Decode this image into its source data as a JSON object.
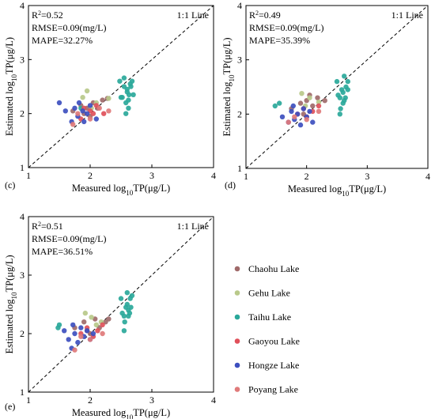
{
  "chart_data": [
    {
      "type": "scatter",
      "panel_label": "(c)",
      "xlabel": "Measured log10TP(μg/L)",
      "ylabel": "Estimated log10TP(μg/L)",
      "xlim": [
        1,
        4
      ],
      "ylim": [
        1,
        4
      ],
      "xticks": [
        "1",
        "2",
        "3",
        "4"
      ],
      "yticks": [
        "1",
        "2",
        "3",
        "4"
      ],
      "reference_line": "1:1 Line",
      "stats": [
        "R2=0.52",
        "RMSE=0.09(mg/L)",
        "MAPE=32.27%"
      ],
      "series": [
        {
          "name": "Chaohu Lake",
          "x": [
            1.72,
            1.85,
            1.95,
            2.05,
            2.12,
            2.2,
            2.28,
            1.9,
            2.0
          ],
          "y": [
            2.05,
            2.15,
            2.1,
            2.2,
            2.1,
            2.25,
            2.28,
            2.0,
            1.95
          ]
        },
        {
          "name": "Gehu Lake",
          "x": [
            1.88,
            1.95,
            2.1,
            2.3,
            2.02
          ],
          "y": [
            2.3,
            2.42,
            2.2,
            2.28,
            2.1
          ]
        },
        {
          "name": "Taihu Lake",
          "x": [
            2.48,
            2.52,
            2.55,
            2.58,
            2.6,
            2.62,
            2.65,
            2.68,
            2.5,
            2.55,
            2.6,
            2.63,
            2.66,
            2.7,
            2.58,
            2.62,
            1.85
          ],
          "y": [
            2.6,
            2.3,
            2.5,
            2.2,
            2.4,
            2.1,
            2.55,
            2.6,
            2.3,
            2.66,
            2.45,
            2.35,
            2.5,
            2.35,
            2.0,
            2.25,
            2.1
          ]
        },
        {
          "name": "Gaoyou Lake",
          "x": [
            1.85,
            1.9,
            2.0,
            2.05,
            2.1,
            2.22
          ],
          "y": [
            1.9,
            2.1,
            2.05,
            2.0,
            2.15,
            2.0
          ]
        },
        {
          "name": "Hongze Lake",
          "x": [
            1.5,
            1.6,
            1.7,
            1.75,
            1.8,
            1.82,
            1.9,
            1.95,
            2.0,
            2.1,
            1.88
          ],
          "y": [
            2.2,
            2.05,
            1.85,
            2.1,
            1.95,
            2.2,
            1.85,
            2.0,
            2.15,
            1.9,
            2.05
          ]
        },
        {
          "name": "Poyang Lake",
          "x": [
            1.72,
            1.8,
            2.0,
            2.15,
            2.3
          ],
          "y": [
            1.8,
            2.0,
            1.9,
            2.1,
            2.05
          ]
        }
      ]
    },
    {
      "type": "scatter",
      "panel_label": "(d)",
      "xlabel": "Measured log10TP(μg/L)",
      "ylabel": "Estimated log10TP(μg/L)",
      "xlim": [
        1,
        4
      ],
      "ylim": [
        1,
        4
      ],
      "xticks": [
        "1",
        "2",
        "3",
        "4"
      ],
      "yticks": [
        "1",
        "2",
        "3",
        "4"
      ],
      "reference_line": "1:1 Line",
      "stats": [
        "R2=0.49",
        "RMSE=0.09(mg/L)",
        "MAPE=35.39%"
      ],
      "series": [
        {
          "name": "Chaohu Lake",
          "x": [
            1.75,
            1.9,
            2.0,
            2.1,
            2.18,
            2.3,
            1.95,
            2.05
          ],
          "y": [
            2.1,
            2.2,
            2.25,
            2.15,
            2.3,
            2.25,
            2.0,
            2.35
          ]
        },
        {
          "name": "Gehu Lake",
          "x": [
            1.92,
            2.05,
            2.2,
            1.98
          ],
          "y": [
            2.38,
            2.3,
            2.22,
            2.15
          ]
        },
        {
          "name": "Taihu Lake",
          "x": [
            2.5,
            2.55,
            2.58,
            2.6,
            2.62,
            2.65,
            2.68,
            2.52,
            2.56,
            2.6,
            2.64,
            2.68,
            1.48,
            1.55,
            2.55,
            2.62
          ],
          "y": [
            2.6,
            2.3,
            2.45,
            2.2,
            2.7,
            2.5,
            2.6,
            2.35,
            2.1,
            2.4,
            2.3,
            2.45,
            2.15,
            2.2,
            2.0,
            2.25
          ]
        },
        {
          "name": "Gaoyou Lake",
          "x": [
            1.85,
            1.95,
            2.0,
            2.1,
            2.2
          ],
          "y": [
            2.0,
            2.1,
            1.95,
            2.05,
            2.15
          ]
        },
        {
          "name": "Hongze Lake",
          "x": [
            1.6,
            1.7,
            1.75,
            1.8,
            1.85,
            1.9,
            1.95,
            2.0,
            2.05,
            2.1,
            1.78
          ],
          "y": [
            1.95,
            1.85,
            2.05,
            1.9,
            2.0,
            1.8,
            2.1,
            1.95,
            2.05,
            1.85,
            2.15
          ]
        },
        {
          "name": "Poyang Lake",
          "x": [
            1.7,
            1.8,
            2.0,
            2.2
          ],
          "y": [
            1.85,
            1.95,
            1.9,
            2.05
          ]
        }
      ]
    },
    {
      "type": "scatter",
      "panel_label": "(e)",
      "xlabel": "Measured log10TP(μg/L)",
      "ylabel": "Estimated log10TP(μg/L)",
      "xlim": [
        1,
        4
      ],
      "ylim": [
        1,
        4
      ],
      "xticks": [
        "1",
        "2",
        "3",
        "4"
      ],
      "yticks": [
        "1",
        "2",
        "3",
        "4"
      ],
      "reference_line": "1:1 Line",
      "stats": [
        "R2=0.51",
        "RMSE=0.09(mg/L)",
        "MAPE=36.51%"
      ],
      "series": [
        {
          "name": "Chaohu Lake",
          "x": [
            1.75,
            1.9,
            2.0,
            2.08,
            2.15,
            2.25,
            1.95,
            2.3
          ],
          "y": [
            2.1,
            2.2,
            2.0,
            2.25,
            2.1,
            2.2,
            2.05,
            2.25
          ]
        },
        {
          "name": "Gehu Lake",
          "x": [
            1.92,
            2.02,
            2.18,
            2.1
          ],
          "y": [
            2.35,
            2.28,
            2.2,
            2.15
          ]
        },
        {
          "name": "Taihu Lake",
          "x": [
            1.48,
            1.5,
            2.5,
            2.55,
            2.58,
            2.6,
            2.62,
            2.65,
            2.68,
            2.52,
            2.56,
            2.6,
            2.64,
            2.66,
            2.55,
            2.62
          ],
          "y": [
            2.1,
            2.15,
            2.6,
            2.3,
            2.45,
            2.7,
            2.4,
            2.6,
            2.65,
            2.35,
            2.2,
            2.5,
            2.35,
            2.45,
            2.05,
            2.3
          ]
        },
        {
          "name": "Gaoyou Lake",
          "x": [
            1.85,
            1.95,
            2.05,
            2.12,
            2.2
          ],
          "y": [
            2.0,
            2.1,
            1.95,
            2.05,
            2.15
          ]
        },
        {
          "name": "Hongze Lake",
          "x": [
            1.58,
            1.65,
            1.7,
            1.75,
            1.8,
            1.85,
            1.9,
            1.95,
            2.0,
            2.05,
            1.72
          ],
          "y": [
            2.05,
            1.9,
            1.75,
            2.0,
            1.85,
            2.1,
            1.95,
            2.05,
            1.9,
            2.0,
            2.15
          ]
        },
        {
          "name": "Poyang Lake",
          "x": [
            1.75,
            1.85,
            2.0,
            2.2
          ],
          "y": [
            1.72,
            1.95,
            1.9,
            2.0
          ]
        }
      ]
    }
  ],
  "legend": {
    "items": [
      {
        "name": "Chaohu Lake",
        "color": "#a06a6a"
      },
      {
        "name": "Gehu Lake",
        "color": "#b9c98a"
      },
      {
        "name": "Taihu Lake",
        "color": "#2aa89a"
      },
      {
        "name": "Gaoyou Lake",
        "color": "#e0505a"
      },
      {
        "name": "Hongze Lake",
        "color": "#3d4fbf"
      },
      {
        "name": "Poyang Lake",
        "color": "#e07a7a"
      }
    ]
  }
}
